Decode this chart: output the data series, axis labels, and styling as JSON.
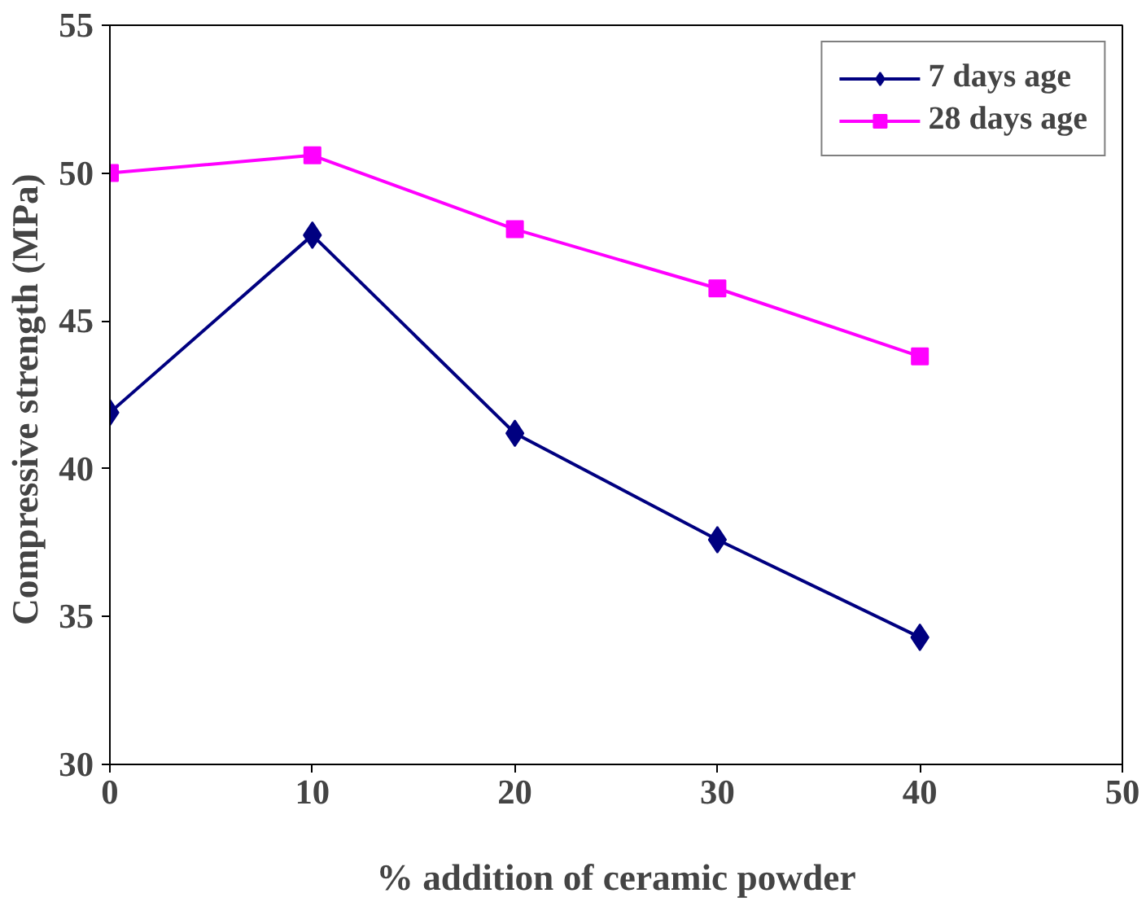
{
  "chart_data": {
    "type": "line",
    "xlabel": "% addition of ceramic powder",
    "ylabel": "Compressive strength  (MPa)",
    "x": [
      0,
      10,
      20,
      30,
      40
    ],
    "series": [
      {
        "name": "7 days age",
        "color": "#000080",
        "values": [
          41.9,
          47.9,
          41.2,
          37.6,
          34.3
        ],
        "marker": "diamond"
      },
      {
        "name": "28 days age",
        "color": "#ff00ff",
        "values": [
          50.0,
          50.6,
          48.1,
          46.1,
          43.8
        ],
        "marker": "square"
      }
    ],
    "xlim": [
      0,
      50
    ],
    "xticks": [
      0,
      10,
      20,
      30,
      40,
      50
    ],
    "ylim": [
      30,
      55
    ],
    "yticks": [
      30,
      35,
      40,
      45,
      50,
      55
    ],
    "grid": false,
    "legend": "top right",
    "line_style": "solid"
  }
}
